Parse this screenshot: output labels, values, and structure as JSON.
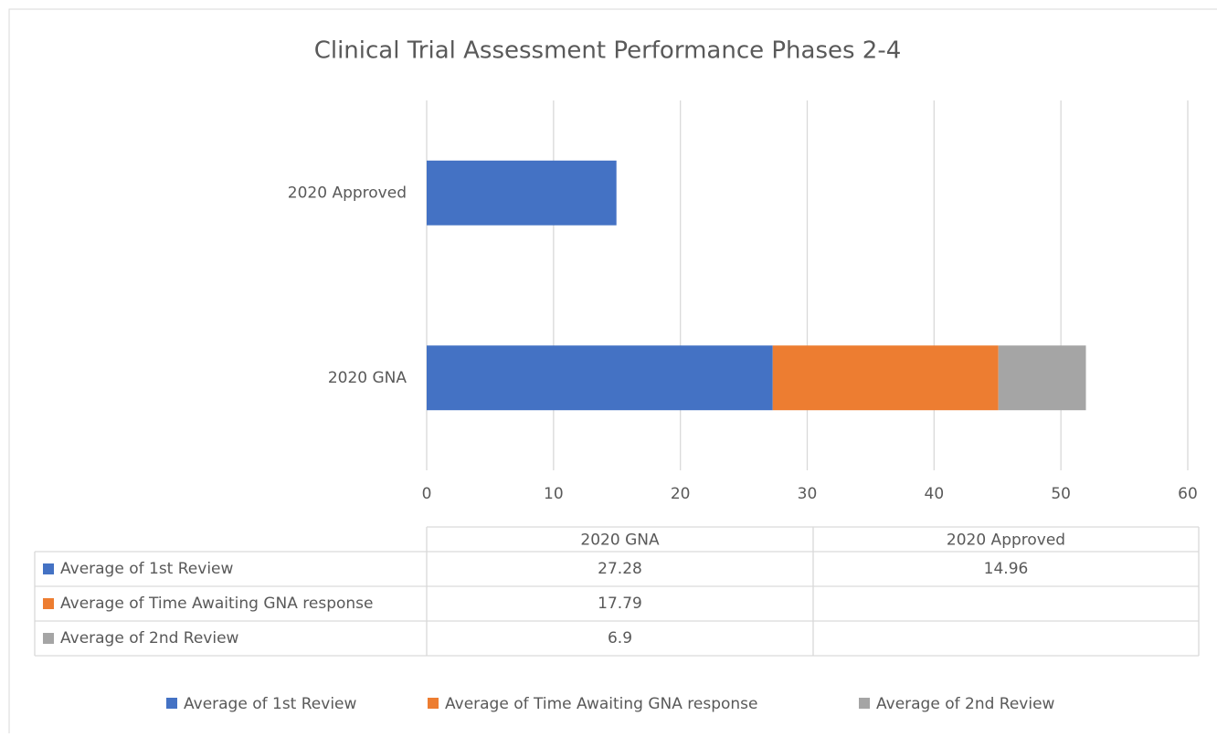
{
  "chart_data": {
    "type": "stacked_bar_horizontal",
    "title": "Clinical Trial Assessment Performance Phases 2-4",
    "categories": [
      "2020 GNA",
      "2020 Approved"
    ],
    "series": [
      {
        "name": "Average of 1st Review",
        "color": "#4472c4",
        "values": [
          27.28,
          14.96
        ]
      },
      {
        "name": "Average of Time Awaiting GNA response",
        "color": "#ed7d31",
        "values": [
          17.79,
          null
        ]
      },
      {
        "name": "Average of 2nd Review",
        "color": "#a5a5a5",
        "values": [
          6.9,
          null
        ]
      }
    ],
    "xlim": [
      0,
      60
    ],
    "xticks": [
      0,
      10,
      20,
      30,
      40,
      50,
      60
    ],
    "grid": true,
    "legend": "bottom"
  }
}
